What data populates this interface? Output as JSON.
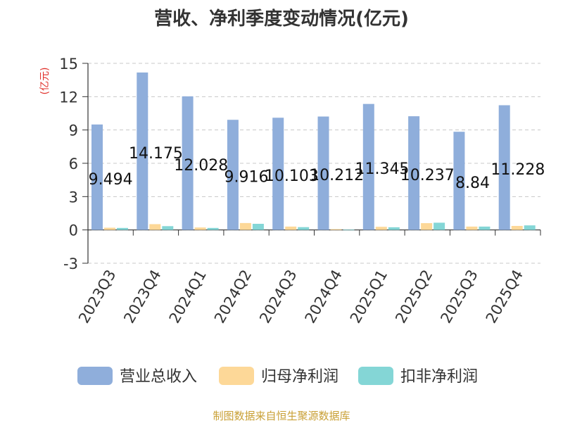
{
  "chart_data": {
    "type": "bar",
    "title": "营收、净利季度变动情况(亿元)",
    "ylabel": "(亿元)",
    "xlabel": "",
    "ylim": [
      -3,
      15
    ],
    "yticks": [
      -3,
      0,
      3,
      6,
      9,
      12,
      15
    ],
    "grid": true,
    "legend_position": "bottom",
    "categories": [
      "2023Q3",
      "2023Q4",
      "2024Q1",
      "2024Q2",
      "2024Q3",
      "2024Q4",
      "2025Q1",
      "2025Q2",
      "2025Q3",
      "2025Q4"
    ],
    "series": [
      {
        "name": "营业总收入",
        "color": "#8faedb",
        "values": [
          9.494,
          14.175,
          12.028,
          9.916,
          10.103,
          10.212,
          11.345,
          10.237,
          8.84,
          11.228
        ]
      },
      {
        "name": "归母净利润",
        "color": "#fdd898",
        "values": [
          0.2,
          0.52,
          0.22,
          0.62,
          0.3,
          0.07,
          0.28,
          0.61,
          0.3,
          0.36
        ]
      },
      {
        "name": "扣非净利润",
        "color": "#84d6d6",
        "values": [
          0.18,
          0.34,
          0.18,
          0.55,
          0.25,
          0.02,
          0.24,
          0.65,
          0.3,
          0.41
        ]
      }
    ],
    "data_labels": [
      "9.494",
      "14.175",
      "12.028",
      "9.916",
      "10.103",
      "10.212",
      "11.345",
      "10.237",
      "8.84",
      "11.228"
    ]
  },
  "footer": "制图数据来自恒生聚源数据库"
}
